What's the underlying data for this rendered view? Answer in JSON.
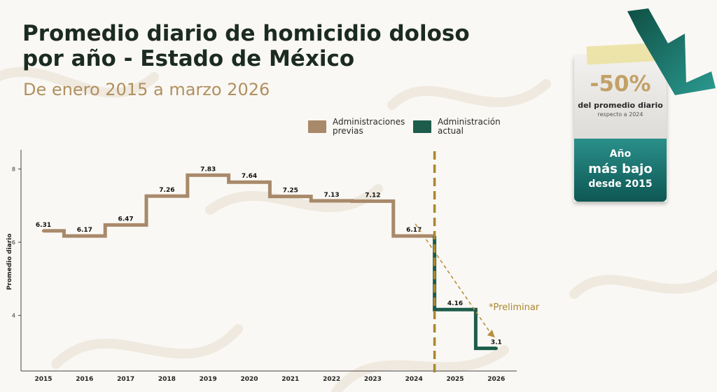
{
  "header": {
    "title_line1": "Promedio diario de homicidio doloso",
    "title_line2": "por año - Estado de México",
    "subtitle": "De enero 2015 a marzo 2026"
  },
  "legend": {
    "previous": "Administraciones previas",
    "current": "Administración actual"
  },
  "colors": {
    "previous": "#a8896a",
    "current": "#1d5c4a",
    "divider": "#a9872e",
    "trend": "#b89040"
  },
  "chart_data": {
    "type": "line",
    "step": true,
    "ylabel": "Promedio diario",
    "y_ticks": [
      4,
      6,
      8
    ],
    "ylim": [
      2.6,
      8.5
    ],
    "x": [
      "2015",
      "2016",
      "2017",
      "2018",
      "2019",
      "2020",
      "2021",
      "2022",
      "2023",
      "2024",
      "2025",
      "2026"
    ],
    "series": [
      {
        "role": "previous",
        "legend_key": "previous",
        "x": [
          "2015",
          "2016",
          "2017",
          "2018",
          "2019",
          "2020",
          "2021",
          "2022",
          "2023",
          "2024"
        ],
        "values": [
          6.31,
          6.17,
          6.47,
          7.26,
          7.83,
          7.64,
          7.25,
          7.13,
          7.12,
          6.17
        ]
      },
      {
        "role": "current",
        "legend_key": "current",
        "x": [
          "2025",
          "2026"
        ],
        "values": [
          4.16,
          3.1
        ]
      }
    ],
    "data_labels": [
      "6.31",
      "6.17",
      "6.47",
      "7.26",
      "7.83",
      "7.64",
      "7.25",
      "7.13",
      "7.12",
      "6.17",
      "4.16",
      "3.1"
    ],
    "annotation": "*Preliminar",
    "divider_between": [
      "2024",
      "2025"
    ]
  },
  "card": {
    "percent": "-50%",
    "line1": "del promedio diario",
    "line2": "respecto a 2024",
    "bottom1": "Año",
    "bottom2": "más bajo",
    "bottom3": "desde 2015"
  }
}
